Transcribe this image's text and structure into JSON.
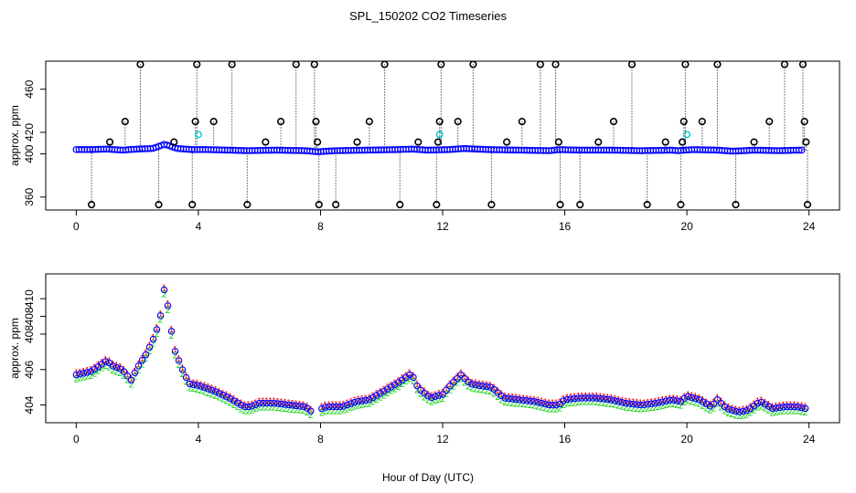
{
  "chart_data": {
    "title": "SPL_150202  CO2 Timeseries",
    "xlabel": "Hour of Day (UTC)",
    "xlim": [
      -1,
      25
    ],
    "xticks": [
      "0",
      "4",
      "8",
      "12",
      "16",
      "20",
      "24"
    ],
    "panels": [
      {
        "type": "scatter",
        "ylabel": "approx. ppm",
        "ylim": [
          348,
          486
        ],
        "yticks": [
          "360",
          "400",
          "420",
          "460"
        ],
        "baseline_points": [
          [
            0,
            404
          ],
          [
            0.5,
            404
          ],
          [
            1,
            404.5
          ],
          [
            1.5,
            403.5
          ],
          [
            2,
            404.5
          ],
          [
            2.5,
            405
          ],
          [
            2.9,
            409
          ],
          [
            3.3,
            405
          ],
          [
            3.8,
            404
          ],
          [
            4.3,
            404
          ],
          [
            5,
            403.5
          ],
          [
            5.6,
            403
          ],
          [
            6.5,
            403.5
          ],
          [
            7.5,
            403
          ],
          [
            7.9,
            402
          ],
          [
            8.5,
            403
          ],
          [
            9.5,
            403.5
          ],
          [
            10.5,
            404
          ],
          [
            11,
            404.5
          ],
          [
            11.5,
            403.5
          ],
          [
            12.2,
            404
          ],
          [
            12.7,
            405
          ],
          [
            13.5,
            404
          ],
          [
            14.5,
            403.5
          ],
          [
            15.5,
            403
          ],
          [
            15.8,
            404
          ],
          [
            16.5,
            403.5
          ],
          [
            17.5,
            403.5
          ],
          [
            18.5,
            403
          ],
          [
            19.5,
            403.5
          ],
          [
            19.7,
            403
          ],
          [
            20.2,
            404
          ],
          [
            21,
            403.5
          ],
          [
            21.5,
            402.5
          ],
          [
            22.2,
            403.5
          ],
          [
            23,
            403
          ],
          [
            23.7,
            403.5
          ]
        ],
        "spikes": [
          {
            "x": 0.5,
            "y": 353
          },
          {
            "x": 1.1,
            "y": 411
          },
          {
            "x": 1.6,
            "y": 430
          },
          {
            "x": 2.1,
            "y": 483
          },
          {
            "x": 2.7,
            "y": 353
          },
          {
            "x": 3.2,
            "y": 411
          },
          {
            "x": 3.8,
            "y": 353
          },
          {
            "x": 3.9,
            "y": 430
          },
          {
            "x": 3.95,
            "y": 483
          },
          {
            "x": 4.5,
            "y": 430
          },
          {
            "x": 5.1,
            "y": 483
          },
          {
            "x": 5.6,
            "y": 353
          },
          {
            "x": 6.2,
            "y": 411
          },
          {
            "x": 6.7,
            "y": 430
          },
          {
            "x": 7.2,
            "y": 483
          },
          {
            "x": 7.8,
            "y": 483
          },
          {
            "x": 7.85,
            "y": 430
          },
          {
            "x": 7.9,
            "y": 411
          },
          {
            "x": 7.95,
            "y": 353
          },
          {
            "x": 8.5,
            "y": 353
          },
          {
            "x": 9.2,
            "y": 411
          },
          {
            "x": 9.6,
            "y": 430
          },
          {
            "x": 10.1,
            "y": 483
          },
          {
            "x": 10.6,
            "y": 353
          },
          {
            "x": 11.2,
            "y": 411
          },
          {
            "x": 11.8,
            "y": 353
          },
          {
            "x": 11.85,
            "y": 411
          },
          {
            "x": 11.9,
            "y": 430
          },
          {
            "x": 11.95,
            "y": 483
          },
          {
            "x": 12.5,
            "y": 430
          },
          {
            "x": 13.0,
            "y": 483
          },
          {
            "x": 13.6,
            "y": 353
          },
          {
            "x": 14.1,
            "y": 411
          },
          {
            "x": 14.6,
            "y": 430
          },
          {
            "x": 15.2,
            "y": 483
          },
          {
            "x": 15.7,
            "y": 483
          },
          {
            "x": 15.8,
            "y": 411
          },
          {
            "x": 15.85,
            "y": 353
          },
          {
            "x": 16.5,
            "y": 353
          },
          {
            "x": 17.1,
            "y": 411
          },
          {
            "x": 17.6,
            "y": 430
          },
          {
            "x": 18.2,
            "y": 483
          },
          {
            "x": 18.7,
            "y": 353
          },
          {
            "x": 19.3,
            "y": 411
          },
          {
            "x": 19.8,
            "y": 353
          },
          {
            "x": 19.85,
            "y": 411
          },
          {
            "x": 19.9,
            "y": 430
          },
          {
            "x": 19.95,
            "y": 483
          },
          {
            "x": 20.5,
            "y": 430
          },
          {
            "x": 21.0,
            "y": 483
          },
          {
            "x": 21.6,
            "y": 353
          },
          {
            "x": 22.2,
            "y": 411
          },
          {
            "x": 22.7,
            "y": 430
          },
          {
            "x": 23.2,
            "y": 483
          },
          {
            "x": 23.8,
            "y": 483
          },
          {
            "x": 23.85,
            "y": 430
          },
          {
            "x": 23.9,
            "y": 411
          },
          {
            "x": 23.95,
            "y": 353
          }
        ],
        "cyan_points": [
          [
            4.0,
            418
          ],
          [
            11.9,
            418
          ],
          [
            20.0,
            418
          ]
        ]
      },
      {
        "type": "scatter",
        "ylabel": "approx. ppm",
        "ylim": [
          403.0,
          411.4
        ],
        "yticks": [
          "404",
          "406",
          "408",
          "408",
          "410"
        ],
        "series": [
          {
            "name": "1",
            "color": "#ff0000",
            "offset": 0.15
          },
          {
            "name": "2",
            "color": "#00cc00",
            "offset": -0.2
          },
          {
            "name": "o",
            "color": "#0000ff",
            "offset": 0
          }
        ],
        "x": [
          0,
          0.5,
          1,
          1.2,
          1.5,
          1.8,
          2,
          2.3,
          2.6,
          2.8,
          2.9,
          3.0,
          3.2,
          3.5,
          3.7,
          4,
          4.5,
          5,
          5.5,
          5.7,
          6,
          6.5,
          7,
          7.5,
          7.8,
          7.9,
          8.2,
          8.7,
          9.2,
          9.6,
          10,
          10.5,
          11,
          11.1,
          11.3,
          11.6,
          12,
          12.3,
          12.6,
          12.9,
          13.2,
          13.6,
          14,
          14.5,
          15,
          15.5,
          15.8,
          16,
          16.5,
          17,
          17.5,
          18,
          18.5,
          19,
          19.5,
          19.8,
          20,
          20.4,
          20.8,
          21,
          21.3,
          21.7,
          22,
          22.4,
          22.8,
          23.2,
          23.6,
          23.9
        ],
        "values": [
          405.7,
          405.9,
          406.5,
          406.2,
          406.0,
          405.4,
          406.1,
          406.9,
          408.0,
          409.3,
          410.8,
          409.6,
          407.2,
          405.9,
          405.2,
          405.1,
          404.8,
          404.4,
          403.9,
          403.9,
          404.1,
          404.1,
          404.0,
          403.9,
          403.5,
          403.7,
          403.9,
          403.9,
          404.2,
          404.3,
          404.7,
          405.2,
          405.8,
          405.2,
          404.8,
          404.4,
          404.6,
          405.2,
          405.7,
          405.2,
          405.1,
          405.0,
          404.4,
          404.3,
          404.2,
          404.0,
          404.0,
          404.3,
          404.4,
          404.4,
          404.3,
          404.1,
          404.0,
          404.1,
          404.3,
          404.2,
          404.5,
          404.3,
          403.9,
          404.3,
          403.8,
          403.6,
          403.7,
          404.2,
          403.8,
          403.9,
          403.9,
          403.8
        ]
      }
    ]
  }
}
